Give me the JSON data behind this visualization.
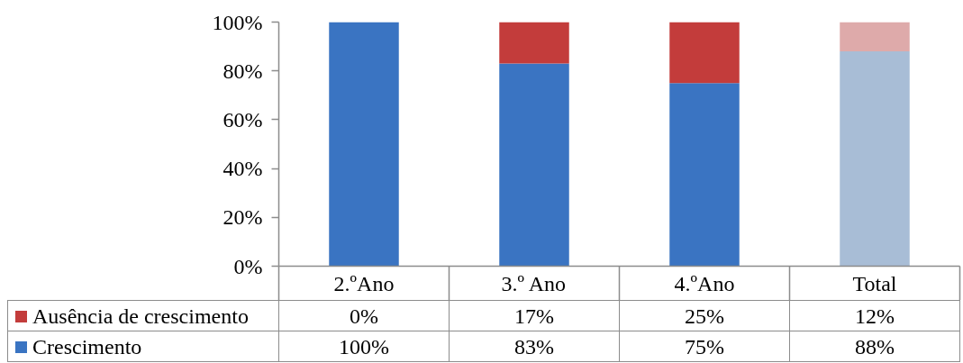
{
  "chart_data": {
    "type": "bar",
    "stacked": true,
    "categories": [
      "2.ºAno",
      "3.º Ano",
      "4.ºAno",
      "Total"
    ],
    "series": [
      {
        "name": "Crescimento",
        "color": "#3a74c2",
        "colors": [
          "#3a74c2",
          "#3a74c2",
          "#3a74c2",
          "#a8bdd6"
        ],
        "values": [
          100,
          83,
          75,
          88
        ],
        "value_labels": [
          "100%",
          "83%",
          "75%",
          "88%"
        ]
      },
      {
        "name": "Ausência de crescimento",
        "color": "#c33c3b",
        "colors": [
          "#c33c3b",
          "#c33c3b",
          "#c33c3b",
          "#deaaaa"
        ],
        "values": [
          0,
          17,
          25,
          12
        ],
        "value_labels": [
          "0%",
          "17%",
          "25%",
          "12%"
        ]
      }
    ],
    "ylim": [
      0,
      100
    ],
    "yticks": [
      {
        "value": 0,
        "label": "0%"
      },
      {
        "value": 20,
        "label": "20%"
      },
      {
        "value": 40,
        "label": "40%"
      },
      {
        "value": 60,
        "label": "60%"
      },
      {
        "value": 80,
        "label": "80%"
      },
      {
        "value": 100,
        "label": "100%"
      }
    ],
    "legend": "bottom"
  }
}
